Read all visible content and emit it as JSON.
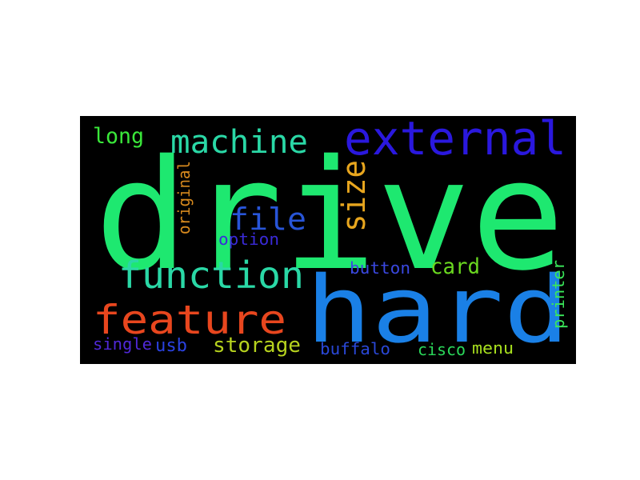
{
  "word_cloud": {
    "background_color": "#000000",
    "words": [
      {
        "text": "drive",
        "color": "#1ee870",
        "rotated": false
      },
      {
        "text": "hard",
        "color": "#1a80e6",
        "rotated": false
      },
      {
        "text": "external",
        "color": "#2a18de",
        "rotated": false
      },
      {
        "text": "function",
        "color": "#2ad8a6",
        "rotated": false
      },
      {
        "text": "feature",
        "color": "#e8461e",
        "rotated": false
      },
      {
        "text": "machine",
        "color": "#2ad8a6",
        "rotated": false
      },
      {
        "text": "size",
        "color": "#e8a61e",
        "rotated": true
      },
      {
        "text": "file",
        "color": "#2855d8",
        "rotated": false
      },
      {
        "text": "long",
        "color": "#3ae83a",
        "rotated": false
      },
      {
        "text": "card",
        "color": "#6ad820",
        "rotated": false
      },
      {
        "text": "storage",
        "color": "#b6d21e",
        "rotated": false
      },
      {
        "text": "original",
        "color": "#d88a1e",
        "rotated": true
      },
      {
        "text": "option",
        "color": "#3a2ad8",
        "rotated": false
      },
      {
        "text": "button",
        "color": "#3a48e0",
        "rotated": false
      },
      {
        "text": "printer",
        "color": "#3ae85a",
        "rotated": true
      },
      {
        "text": "single",
        "color": "#5028d8",
        "rotated": false
      },
      {
        "text": "usb",
        "color": "#2a42e0",
        "rotated": false
      },
      {
        "text": "buffalo",
        "color": "#2a48d8",
        "rotated": false
      },
      {
        "text": "cisco",
        "color": "#2ad85a",
        "rotated": false
      },
      {
        "text": "menu",
        "color": "#a8e01e",
        "rotated": false
      }
    ]
  }
}
